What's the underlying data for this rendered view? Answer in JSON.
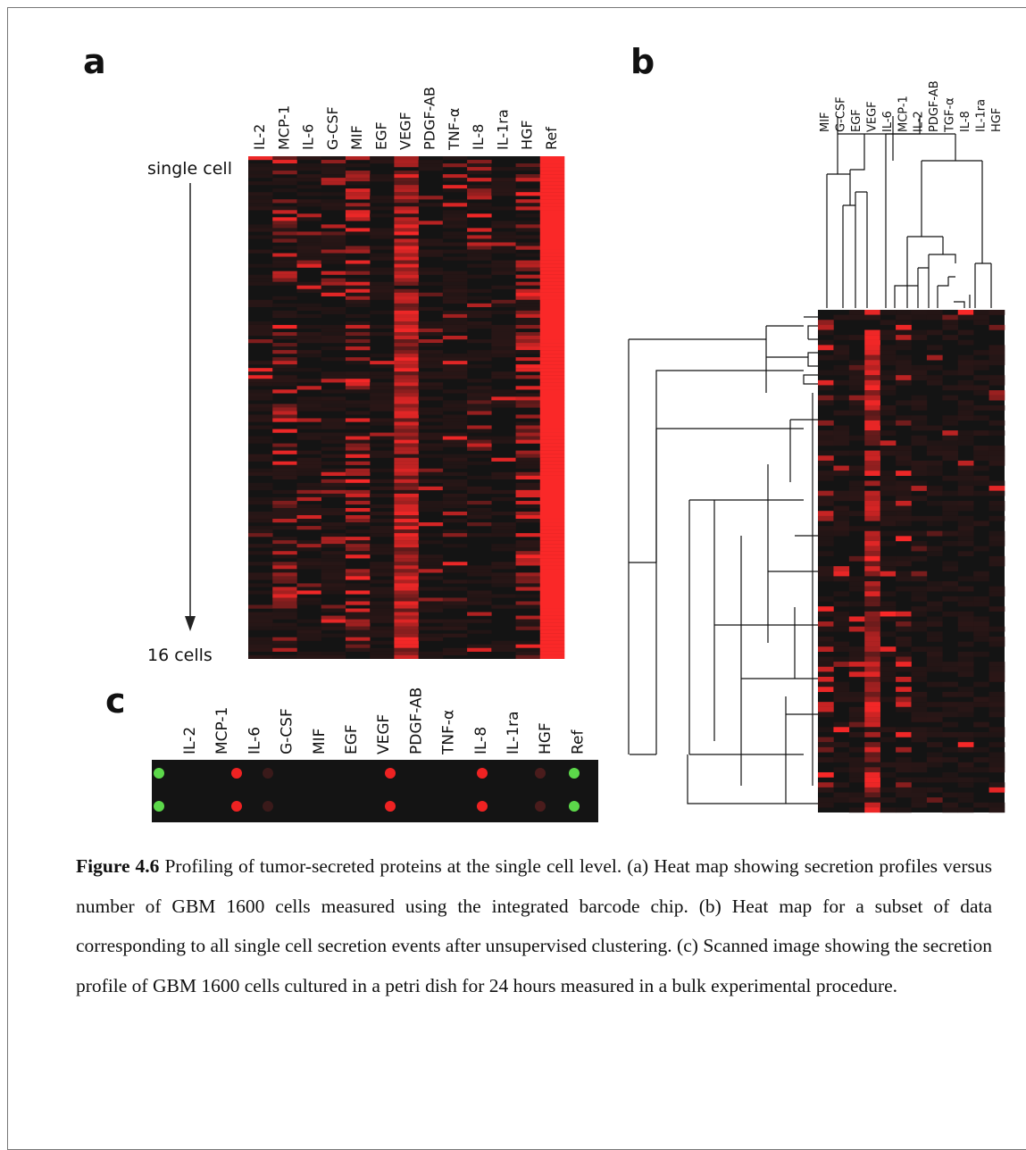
{
  "panel_a": {
    "label": "a",
    "columns": [
      "IL-2",
      "MCP-1",
      "IL-6",
      "G-CSF",
      "MIF",
      "EGF",
      "VEGF",
      "PDGF-AB",
      "TNF-α",
      "IL-8",
      "IL-1ra",
      "HGF",
      "Ref"
    ],
    "top_label": "single cell",
    "bottom_label": "16 cells"
  },
  "panel_b": {
    "label": "b",
    "columns": [
      "MIF",
      "G-CSF",
      "EGF",
      "VEGF",
      "IL-6",
      "MCP-1",
      "IL-2",
      "PDGF-AB",
      "TGF-α",
      "IL-8",
      "IL-1ra",
      "HGF"
    ]
  },
  "panel_c": {
    "label": "c",
    "columns": [
      "IL-2",
      "MCP-1",
      "IL-6",
      "G-CSF",
      "MIF",
      "EGF",
      "VEGF",
      "PDGF-AB",
      "TNF-α",
      "IL-8",
      "IL-1ra",
      "HGF",
      "Ref"
    ]
  },
  "caption": {
    "label": "Figure 4.6",
    "text": "Profiling of tumor-secreted proteins at the single cell level. (a) Heat map showing secretion profiles versus number of GBM 1600 cells measured using the integrated barcode chip. (b) Heat map for a subset of data corresponding to all single cell secretion events after unsupervised clustering. (c) Scanned image showing the secretion profile of GBM 1600 cells cultured in a petri dish for 24 hours measured in a bulk experimental procedure."
  }
}
